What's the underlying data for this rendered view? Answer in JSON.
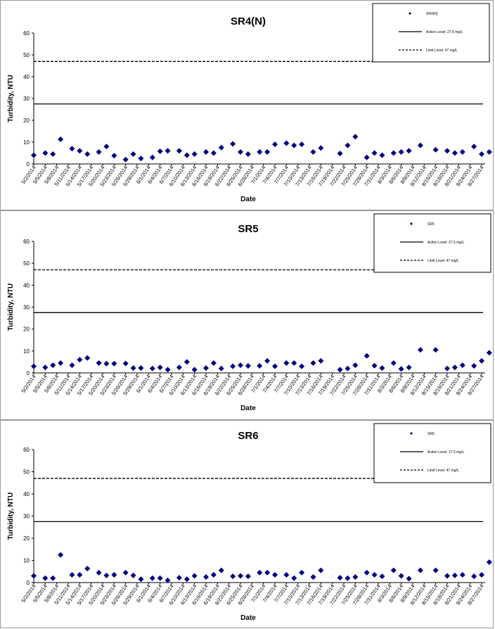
{
  "chart_data": [
    {
      "type": "scatter",
      "title": "SR4(N)",
      "xlabel": "Date",
      "ylabel": "Turbidity, NTU",
      "ylim": [
        0,
        60
      ],
      "yticks": [
        "0",
        "10",
        "20",
        "30",
        "40",
        "50",
        "60"
      ],
      "grid": false,
      "legend_position": "top-right",
      "xtick_labels": [
        "5/2/2014",
        "5/5/2014",
        "5/8/2014",
        "5/11/2014",
        "5/14/2014",
        "5/17/2014",
        "5/20/2014",
        "5/23/2014",
        "5/26/2014",
        "5/29/2014",
        "6/1/2014",
        "6/4/2014",
        "6/7/2014",
        "6/10/2014",
        "6/13/2014",
        "6/16/2014",
        "6/19/2014",
        "6/22/2014",
        "6/25/2014",
        "6/28/2014",
        "7/1/2014",
        "7/4/2014",
        "7/7/2014",
        "7/10/2014",
        "7/13/2014",
        "7/16/2014",
        "7/19/2014",
        "7/22/2014",
        "7/25/2014",
        "7/28/2014",
        "7/31/2014",
        "8/3/2014",
        "8/6/2014",
        "8/9/2014",
        "8/12/2014",
        "8/15/2014",
        "8/18/2014",
        "8/21/2014",
        "8/24/2014",
        "8/27/2014"
      ],
      "series": [
        {
          "name": "SR4(N)",
          "color": "#000080",
          "marker": "diamond",
          "x": [
            "5/2/2014",
            "5/5/2014",
            "5/7/2014",
            "5/9/2014",
            "5/12/2014",
            "5/14/2014",
            "5/16/2014",
            "5/19/2014",
            "5/21/2014",
            "5/23/2014",
            "5/26/2014",
            "5/28/2014",
            "5/30/2014",
            "6/2/2014",
            "6/4/2014",
            "6/6/2014",
            "6/9/2014",
            "6/11/2014",
            "6/13/2014",
            "6/16/2014",
            "6/18/2014",
            "6/20/2014",
            "6/23/2014",
            "6/25/2014",
            "6/27/2014",
            "6/30/2014",
            "7/2/2014",
            "7/4/2014",
            "7/7/2014",
            "7/9/2014",
            "7/11/2014",
            "7/14/2014",
            "7/16/2014",
            "7/21/2014",
            "7/23/2014",
            "7/25/2014",
            "7/28/2014",
            "7/30/2014",
            "8/1/2014",
            "8/4/2014",
            "8/6/2014",
            "8/8/2014",
            "8/11/2014",
            "8/15/2014",
            "8/18/2014",
            "8/20/2014",
            "8/22/2014",
            "8/25/2014",
            "8/27/2014",
            "8/29/2014"
          ],
          "y": [
            4,
            5,
            4.5,
            11.3,
            7,
            6,
            4.5,
            5.5,
            8,
            3.8,
            2,
            4.5,
            2.5,
            3,
            5.8,
            6,
            6,
            4,
            4.5,
            5.5,
            5,
            7.5,
            9.2,
            5.5,
            4.5,
            5.5,
            5.5,
            9,
            9.5,
            8.5,
            9,
            5.5,
            7.3,
            4.8,
            8.5,
            12.5,
            3,
            5,
            4,
            5,
            5.5,
            6,
            8.5,
            6.5,
            6,
            5,
            5.5,
            8,
            4.5,
            5.5
          ]
        },
        {
          "name": "Action Level: 27.5 mg/L",
          "style": "solid",
          "color": "#000000",
          "value": 27.5
        },
        {
          "name": "Limit Level: 47 mg/L",
          "style": "dashed",
          "color": "#000000",
          "value": 47
        }
      ]
    },
    {
      "type": "scatter",
      "title": "SR5",
      "xlabel": "Date",
      "ylabel": "Turbidity, NTU",
      "ylim": [
        0,
        60
      ],
      "yticks": [
        "0",
        "10",
        "20",
        "30",
        "40",
        "50",
        "60"
      ],
      "grid": false,
      "legend_position": "top-right",
      "xtick_labels": [
        "5/2/2014",
        "5/5/2014",
        "5/8/2014",
        "5/11/2014",
        "5/14/2014",
        "5/17/2014",
        "5/20/2014",
        "5/23/2014",
        "5/26/2014",
        "5/29/2014",
        "6/1/2014",
        "6/4/2014",
        "6/7/2014",
        "6/10/2014",
        "6/13/2014",
        "6/16/2014",
        "6/19/2014",
        "6/22/2014",
        "6/25/2014",
        "6/28/2014",
        "7/1/2014",
        "7/4/2014",
        "7/7/2014",
        "7/10/2014",
        "7/13/2014",
        "7/16/2014",
        "7/19/2014",
        "7/22/2014",
        "7/25/2014",
        "7/28/2014",
        "7/31/2014",
        "8/3/2014",
        "8/6/2014",
        "8/9/2014",
        "8/12/2014",
        "8/15/2014",
        "8/18/2014",
        "8/21/2014",
        "8/24/2014",
        "8/27/2014"
      ],
      "series": [
        {
          "name": "SR5",
          "color": "#000080",
          "marker": "diamond",
          "x": [
            "5/2/2014",
            "5/5/2014",
            "5/7/2014",
            "5/9/2014",
            "5/12/2014",
            "5/14/2014",
            "5/16/2014",
            "5/19/2014",
            "5/21/2014",
            "5/23/2014",
            "5/26/2014",
            "5/28/2014",
            "5/30/2014",
            "6/2/2014",
            "6/4/2014",
            "6/6/2014",
            "6/9/2014",
            "6/11/2014",
            "6/13/2014",
            "6/16/2014",
            "6/18/2014",
            "6/20/2014",
            "6/23/2014",
            "6/25/2014",
            "6/27/2014",
            "6/30/2014",
            "7/2/2014",
            "7/4/2014",
            "7/7/2014",
            "7/9/2014",
            "7/11/2014",
            "7/14/2014",
            "7/16/2014",
            "7/21/2014",
            "7/23/2014",
            "7/25/2014",
            "7/28/2014",
            "7/30/2014",
            "8/1/2014",
            "8/4/2014",
            "8/6/2014",
            "8/8/2014",
            "8/11/2014",
            "8/15/2014",
            "8/18/2014",
            "8/20/2014",
            "8/22/2014",
            "8/25/2014",
            "8/27/2014",
            "8/29/2014"
          ],
          "y": [
            3,
            2.5,
            3.5,
            4.5,
            3.5,
            6,
            6.8,
            4.5,
            4.2,
            4.2,
            4.3,
            2.2,
            2.2,
            2,
            2.5,
            1.5,
            2.5,
            5,
            1.5,
            2.2,
            4.5,
            2,
            3,
            3.5,
            3.2,
            3.2,
            5.5,
            3,
            4.5,
            4.5,
            3,
            4.5,
            5.5,
            1.5,
            2,
            3.5,
            7.8,
            3.3,
            2.2,
            4.5,
            1.8,
            2.5,
            10.5,
            10.5,
            2,
            2.5,
            3.5,
            3.2,
            5.5,
            9.2
          ]
        },
        {
          "name": "Action Level: 27.5 mg/L",
          "style": "solid",
          "color": "#000000",
          "value": 27.5
        },
        {
          "name": "Limit Level: 47 mg/L",
          "style": "dashed",
          "color": "#000000",
          "value": 47
        }
      ]
    },
    {
      "type": "scatter",
      "title": "SR6",
      "xlabel": "Date",
      "ylabel": "Turbidity, NTU",
      "ylim": [
        0,
        60
      ],
      "yticks": [
        "0",
        "10",
        "20",
        "30",
        "40",
        "50",
        "60"
      ],
      "grid": false,
      "legend_position": "top-right",
      "xtick_labels": [
        "5/2/2014",
        "5/5/2014",
        "5/8/2014",
        "5/11/2014",
        "5/14/2014",
        "5/17/2014",
        "5/20/2014",
        "5/23/2014",
        "5/26/2014",
        "5/29/2014",
        "6/1/2014",
        "6/4/2014",
        "6/7/2014",
        "6/10/2014",
        "6/13/2014",
        "6/16/2014",
        "6/19/2014",
        "6/22/2014",
        "6/25/2014",
        "6/28/2014",
        "7/1/2014",
        "7/4/2014",
        "7/7/2014",
        "7/10/2014",
        "7/13/2014",
        "7/16/2014",
        "7/19/2014",
        "7/22/2014",
        "7/25/2014",
        "7/28/2014",
        "7/31/2014",
        "8/3/2014",
        "8/6/2014",
        "8/9/2014",
        "8/12/2014",
        "8/15/2014",
        "8/18/2014",
        "8/21/2014",
        "8/24/2014",
        "8/27/2014"
      ],
      "series": [
        {
          "name": "SR6",
          "color": "#000080",
          "marker": "diamond",
          "x": [
            "5/2/2014",
            "5/5/2014",
            "5/7/2014",
            "5/9/2014",
            "5/12/2014",
            "5/14/2014",
            "5/16/2014",
            "5/19/2014",
            "5/21/2014",
            "5/23/2014",
            "5/26/2014",
            "5/28/2014",
            "5/30/2014",
            "6/2/2014",
            "6/4/2014",
            "6/6/2014",
            "6/9/2014",
            "6/11/2014",
            "6/13/2014",
            "6/16/2014",
            "6/18/2014",
            "6/20/2014",
            "6/23/2014",
            "6/25/2014",
            "6/27/2014",
            "6/30/2014",
            "7/2/2014",
            "7/4/2014",
            "7/7/2014",
            "7/9/2014",
            "7/11/2014",
            "7/14/2014",
            "7/16/2014",
            "7/21/2014",
            "7/23/2014",
            "7/25/2014",
            "7/28/2014",
            "7/30/2014",
            "8/1/2014",
            "8/4/2014",
            "8/6/2014",
            "8/8/2014",
            "8/11/2014",
            "8/15/2014",
            "8/18/2014",
            "8/20/2014",
            "8/22/2014",
            "8/25/2014",
            "8/27/2014",
            "8/29/2014"
          ],
          "y": [
            3,
            2,
            2,
            12.5,
            3.5,
            3.5,
            6.3,
            4.5,
            3.2,
            3.5,
            4.5,
            3.2,
            1.5,
            2,
            2,
            1,
            2.2,
            1.5,
            3,
            2.5,
            3.5,
            5.5,
            2.8,
            3,
            2.8,
            4.5,
            4.5,
            3.5,
            3.5,
            2,
            4.5,
            2.5,
            5.5,
            2.2,
            2,
            2.5,
            4.5,
            3.5,
            2.8,
            5.5,
            3,
            1.8,
            5.5,
            5.5,
            3,
            3.2,
            3.5,
            2.8,
            3.5,
            9.2
          ]
        },
        {
          "name": "Action Level: 27.5 mg/L",
          "style": "solid",
          "color": "#000000",
          "value": 27.5
        },
        {
          "name": "Limit Level: 47 mg/L",
          "style": "dashed",
          "color": "#000000",
          "value": 47
        }
      ]
    }
  ]
}
